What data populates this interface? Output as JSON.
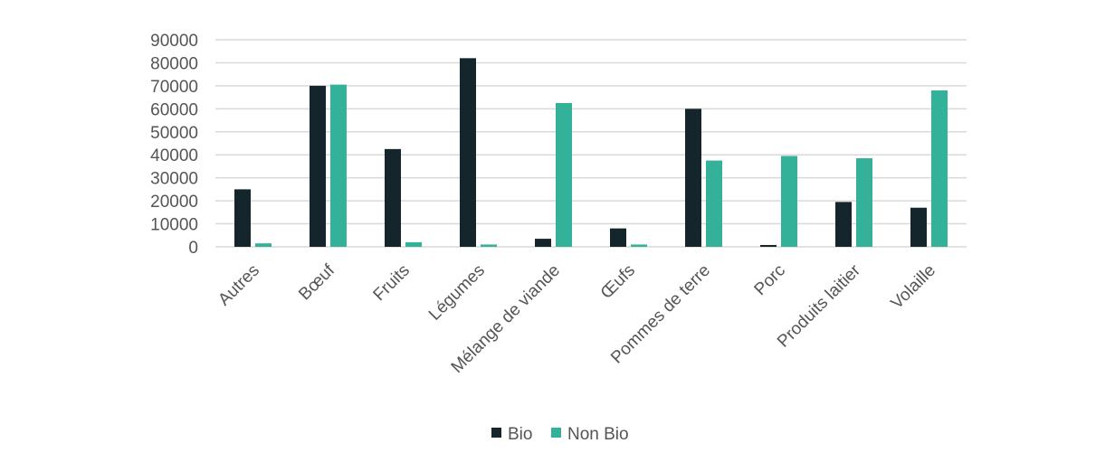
{
  "chart_data": {
    "type": "bar",
    "categories": [
      "Autres",
      "Bœuf",
      "Fruits",
      "Légumes",
      "Mélange de viande",
      "Œufs",
      "Pommes de terre",
      "Porc",
      "Produits laitier",
      "Volaille"
    ],
    "series": [
      {
        "name": "Bio",
        "color": "#14252b",
        "values": [
          25000,
          70000,
          42500,
          82000,
          3500,
          8000,
          60000,
          800,
          19500,
          17000
        ]
      },
      {
        "name": "Non Bio",
        "color": "#33b199",
        "values": [
          1500,
          70500,
          2000,
          1000,
          62500,
          1000,
          37500,
          39500,
          38500,
          68000
        ]
      }
    ],
    "ylim": [
      0,
      90000
    ],
    "yticks": [
      0,
      10000,
      20000,
      30000,
      40000,
      50000,
      60000,
      70000,
      80000,
      90000
    ],
    "grid": true,
    "legend_position": "bottom"
  }
}
